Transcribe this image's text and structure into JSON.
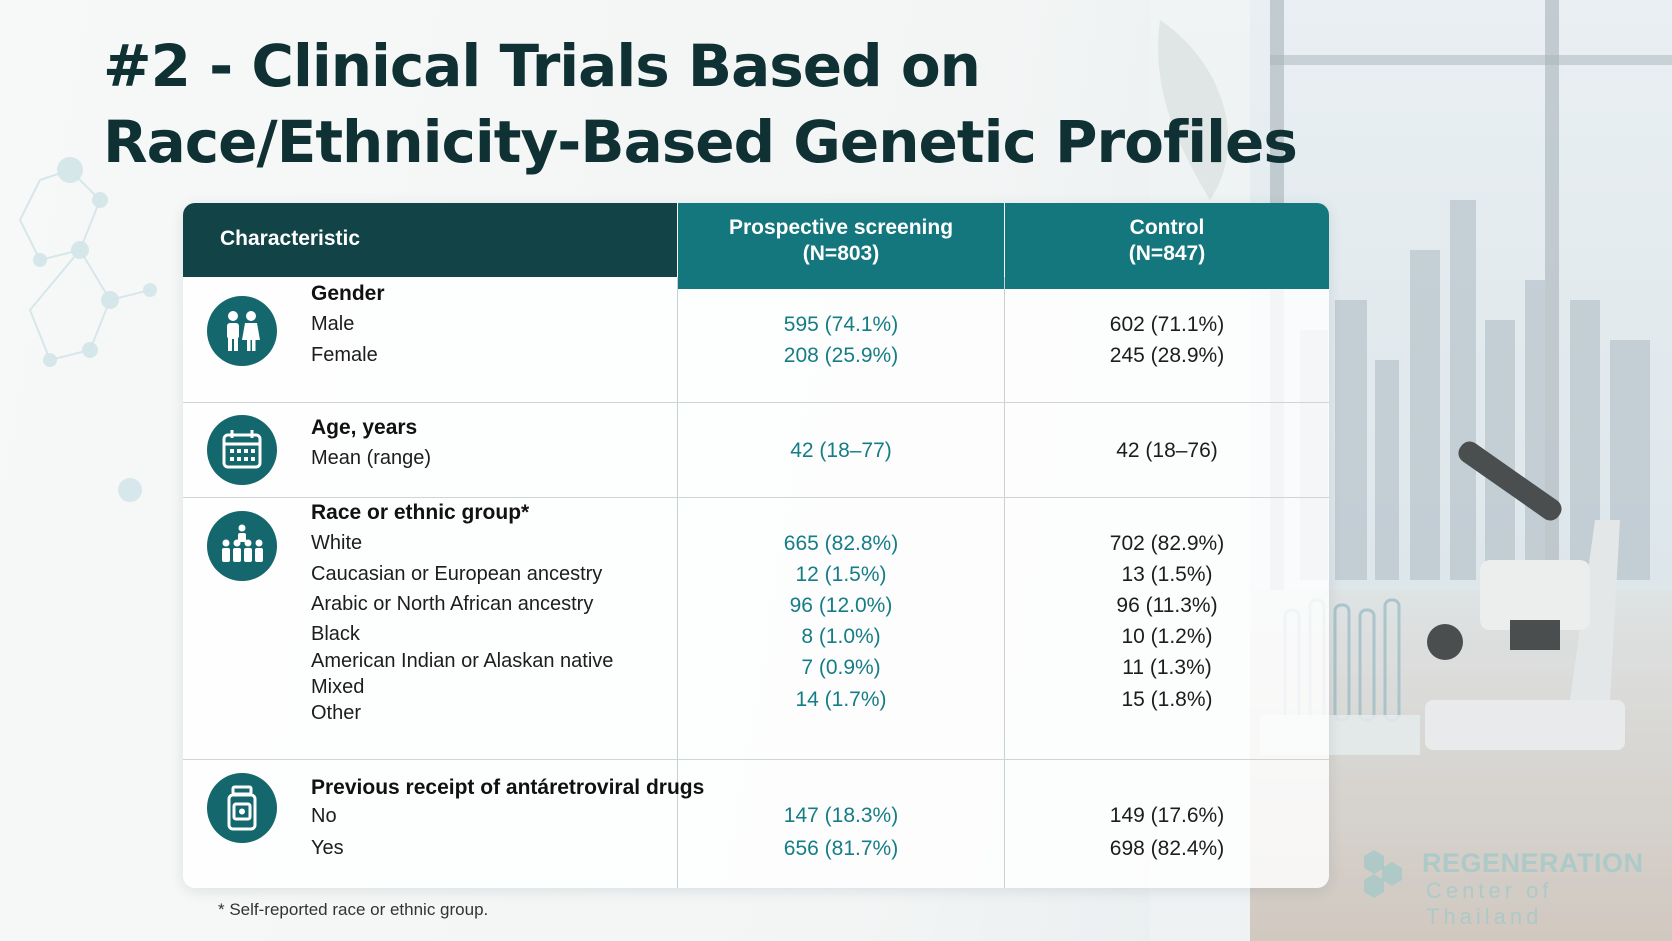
{
  "title": {
    "line1": "#2 - Clinical Trials Based on",
    "line2": "Race/Ethnicity-Based Genetic Profiles"
  },
  "table": {
    "header": {
      "characteristic": "Characteristic",
      "prospective_line1": "Prospective screening",
      "prospective_line2": "(N=803)",
      "control_line1": "Control",
      "control_line2": "(N=847)"
    },
    "sections": [
      {
        "icon": "people-icon",
        "title": "Gender",
        "rows": [
          {
            "label": "Male",
            "prospective": "595 (74.1%)",
            "control": "602 (71.1%)"
          },
          {
            "label": "Female",
            "prospective": "208 (25.9%)",
            "control": "245 (28.9%)"
          }
        ]
      },
      {
        "icon": "calendar-icon",
        "title": "Age, years",
        "rows": [
          {
            "label": "Mean (range)",
            "prospective": "42 (18–77)",
            "control": "42 (18–76)"
          }
        ]
      },
      {
        "icon": "group-icon",
        "title": "Race or ethnic group*",
        "rows": [
          {
            "label": "White",
            "prospective": "665 (82.8%)",
            "control": "702 (82.9%)"
          },
          {
            "label": "Caucasian or European ancestry",
            "prospective": "12 (1.5%)",
            "control": "13 (1.5%)"
          },
          {
            "label": "Arabic or North African ancestry",
            "prospective": "96 (12.0%)",
            "control": "96 (11.3%)"
          },
          {
            "label": "Black",
            "prospective": "8 (1.0%)",
            "control": "10 (1.2%)"
          },
          {
            "label": "American Indian or Alaskan native",
            "prospective": "7 (0.9%)",
            "control": "11 (1.3%)"
          },
          {
            "label": "Mixed",
            "prospective": "14 (1.7%)",
            "control": "15 (1.8%)"
          },
          {
            "label": "Other",
            "prospective": "",
            "control": ""
          }
        ]
      },
      {
        "icon": "medicine-bottle-icon",
        "title": "Previous receipt of antáretroviral drugs",
        "rows": [
          {
            "label": "No",
            "prospective": "147 (18.3%)",
            "control": "149 (17.6%)"
          },
          {
            "label": "Yes",
            "prospective": "656 (81.7%)",
            "control": "698 (82.4%)"
          }
        ]
      }
    ]
  },
  "footnote": "* Self-reported race or ethnic group.",
  "logo": {
    "line1": "REGENERATION",
    "line2": "Center of Thailand"
  },
  "colors": {
    "title": "#0f3133",
    "header_dark": "#124447",
    "header_teal": "#14777d",
    "icon_bg": "#14676c",
    "prospective_text": "#157d86"
  }
}
